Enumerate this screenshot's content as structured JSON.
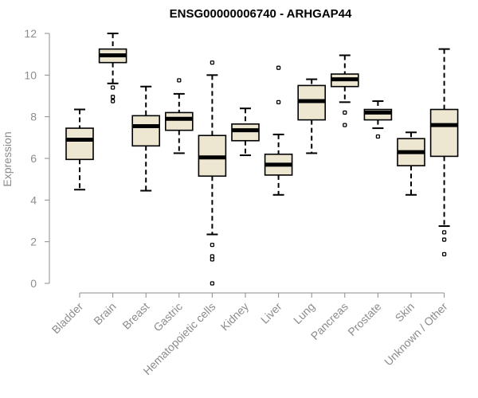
{
  "chart_data": {
    "type": "boxplot",
    "title": "ENSG00000006740 - ARHGAP44",
    "xlabel": "",
    "ylabel": "Expression",
    "ylim": [
      0,
      12
    ],
    "yticks": [
      0,
      2,
      4,
      6,
      8,
      10,
      12
    ],
    "box_color": "#ede6d1",
    "categories": [
      "Bladder",
      "Brain",
      "Breast",
      "Gastric",
      "Hematopoietic cells",
      "Kidney",
      "Liver",
      "Lung",
      "Pancreas",
      "Prostate",
      "Skin",
      "Unknown / Other"
    ],
    "series": [
      {
        "name": "Bladder",
        "min": 4.5,
        "q1": 5.95,
        "median": 6.9,
        "q3": 7.45,
        "max": 8.35,
        "outliers": []
      },
      {
        "name": "Brain",
        "min": 9.6,
        "q1": 10.6,
        "median": 10.95,
        "q3": 11.25,
        "max": 12.0,
        "outliers": [
          9.4,
          8.95,
          8.75
        ]
      },
      {
        "name": "Breast",
        "min": 4.45,
        "q1": 6.6,
        "median": 7.55,
        "q3": 8.05,
        "max": 9.45,
        "outliers": []
      },
      {
        "name": "Gastric",
        "min": 6.25,
        "q1": 7.35,
        "median": 7.9,
        "q3": 8.2,
        "max": 9.1,
        "outliers": [
          9.75
        ]
      },
      {
        "name": "Hematopoietic cells",
        "min": 2.35,
        "q1": 5.15,
        "median": 6.05,
        "q3": 7.1,
        "max": 10.0,
        "outliers": [
          10.6,
          1.85,
          1.3,
          1.15,
          0.0
        ]
      },
      {
        "name": "Kidney",
        "min": 6.15,
        "q1": 6.85,
        "median": 7.35,
        "q3": 7.65,
        "max": 8.4,
        "outliers": []
      },
      {
        "name": "Liver",
        "min": 4.25,
        "q1": 5.2,
        "median": 5.7,
        "q3": 6.2,
        "max": 7.15,
        "outliers": [
          10.35,
          8.7
        ]
      },
      {
        "name": "Lung",
        "min": 6.25,
        "q1": 7.85,
        "median": 8.75,
        "q3": 9.5,
        "max": 9.8,
        "outliers": []
      },
      {
        "name": "Pancreas",
        "min": 8.7,
        "q1": 9.45,
        "median": 9.8,
        "q3": 10.05,
        "max": 10.95,
        "outliers": [
          8.2,
          7.6
        ]
      },
      {
        "name": "Prostate",
        "min": 7.45,
        "q1": 7.85,
        "median": 8.2,
        "q3": 8.35,
        "max": 8.75,
        "outliers": [
          7.05
        ]
      },
      {
        "name": "Skin",
        "min": 4.25,
        "q1": 5.65,
        "median": 6.3,
        "q3": 6.95,
        "max": 7.25,
        "outliers": []
      },
      {
        "name": "Unknown / Other",
        "min": 2.75,
        "q1": 6.1,
        "median": 7.6,
        "q3": 8.35,
        "max": 11.25,
        "outliers": [
          2.45,
          2.1,
          1.4
        ]
      }
    ]
  }
}
